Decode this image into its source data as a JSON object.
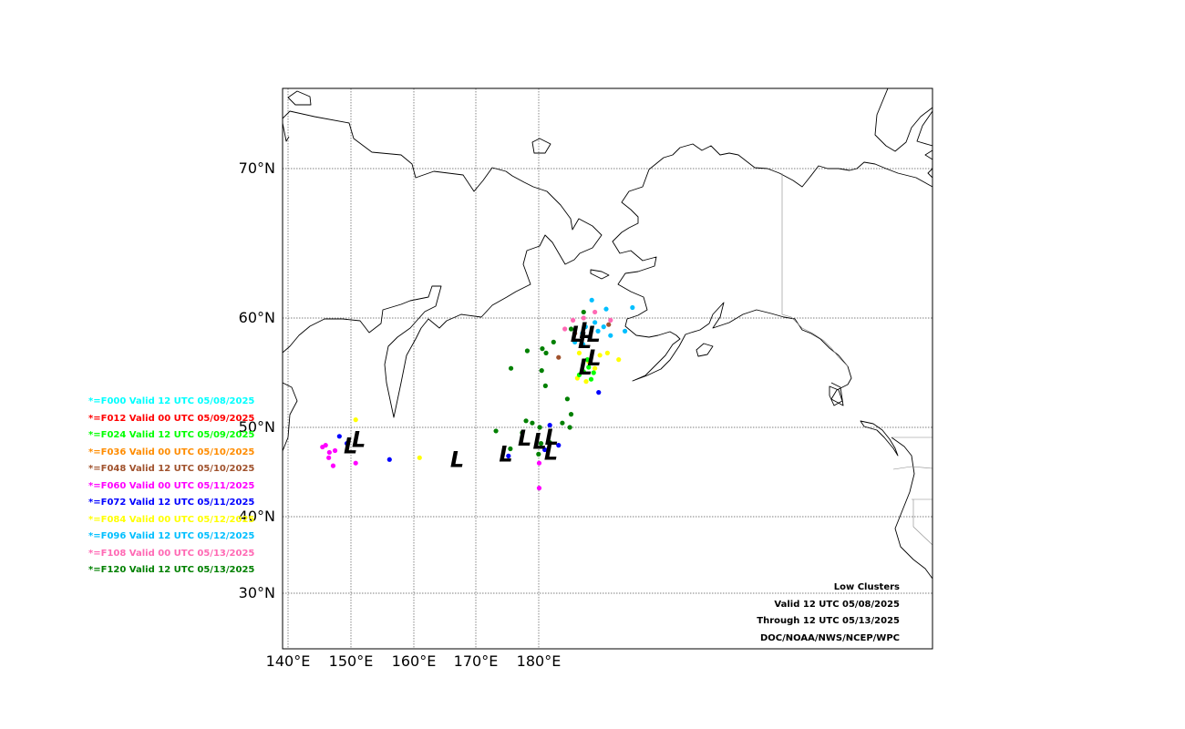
{
  "map": {
    "lat_labels": [
      "70°N",
      "60°N",
      "50°N",
      "40°N",
      "30°N"
    ],
    "lon_labels": [
      "140°E",
      "150°E",
      "160°E",
      "170°E",
      "180°E"
    ]
  },
  "legend": [
    {
      "text": "*=F000 Valid 12 UTC 05/08/2025",
      "color": "#00ffff"
    },
    {
      "text": "*=F012 Valid 00 UTC 05/09/2025",
      "color": "#ff0000"
    },
    {
      "text": "*=F024 Valid 12 UTC 05/09/2025",
      "color": "#00ff00"
    },
    {
      "text": "*=F036 Valid 00 UTC 05/10/2025",
      "color": "#ff8c00"
    },
    {
      "text": "*=F048 Valid 12 UTC 05/10/2025",
      "color": "#a0522d"
    },
    {
      "text": "*=F060 Valid 00 UTC 05/11/2025",
      "color": "#ff00ff"
    },
    {
      "text": "*=F072 Valid 12 UTC 05/11/2025",
      "color": "#0000ff"
    },
    {
      "text": "*=F084 Valid 00 UTC 05/12/2025",
      "color": "#ffff00"
    },
    {
      "text": "*=F096 Valid 12 UTC 05/12/2025",
      "color": "#00bfff"
    },
    {
      "text": "*=F108 Valid 00 UTC 05/13/2025",
      "color": "#ff69b4"
    },
    {
      "text": "*=F120 Valid 12 UTC 05/13/2025",
      "color": "#008000"
    }
  ],
  "info": {
    "line1": "Low Clusters",
    "line2": "Valid 12 UTC 05/08/2025",
    "line3": "Through 12 UTC 05/13/2025",
    "line4": "DOC/NOAA/NWS/NCEP/WPC"
  },
  "clusters": [
    {
      "label": "L",
      "lon": -173.8,
      "lat": 58.6
    },
    {
      "label": "L",
      "lon": -172.4,
      "lat": 58.9
    },
    {
      "label": "L",
      "lon": -172.6,
      "lat": 58.0
    },
    {
      "label": "L",
      "lon": -171.2,
      "lat": 58.6
    },
    {
      "label": "L",
      "lon": -172.5,
      "lat": 55.6
    },
    {
      "label": "L",
      "lon": -171.1,
      "lat": 56.4
    },
    {
      "label": "L",
      "lon": 150.0,
      "lat": 48.0
    },
    {
      "label": "L",
      "lon": 151.3,
      "lat": 48.7
    },
    {
      "label": "L",
      "lon": 167.0,
      "lat": 46.5
    },
    {
      "label": "L",
      "lon": 174.8,
      "lat": 47.1
    },
    {
      "label": "L",
      "lon": 177.8,
      "lat": 48.9
    },
    {
      "label": "L",
      "lon": -179.8,
      "lat": 48.5
    },
    {
      "label": "L",
      "lon": -177.9,
      "lat": 49.0
    },
    {
      "label": "L",
      "lon": -178.0,
      "lat": 47.3
    }
  ],
  "markers": [
    {
      "lon": -171.0,
      "lat": 59.6,
      "color": "#00bfff"
    },
    {
      "lon": -172.5,
      "lat": 59.2,
      "color": "#00bfff"
    },
    {
      "lon": -173.0,
      "lat": 58.6,
      "color": "#00bfff"
    },
    {
      "lon": -171.8,
      "lat": 58.2,
      "color": "#00bfff"
    },
    {
      "lon": -170.5,
      "lat": 58.8,
      "color": "#00bfff"
    },
    {
      "lon": -169.6,
      "lat": 59.2,
      "color": "#00bfff"
    },
    {
      "lon": -174.2,
      "lat": 57.8,
      "color": "#00bfff"
    },
    {
      "lon": -172.9,
      "lat": 57.6,
      "color": "#00bfff"
    },
    {
      "lon": -169.2,
      "lat": 60.6,
      "color": "#00bfff"
    },
    {
      "lon": -165.0,
      "lat": 60.7,
      "color": "#00bfff"
    },
    {
      "lon": -168.5,
      "lat": 58.4,
      "color": "#00bfff"
    },
    {
      "lon": -166.2,
      "lat": 58.8,
      "color": "#00bfff"
    },
    {
      "lon": -171.5,
      "lat": 61.2,
      "color": "#00bfff"
    },
    {
      "lon": -174.5,
      "lat": 59.8,
      "color": "#ff69b4"
    },
    {
      "lon": -172.8,
      "lat": 60.0,
      "color": "#ff69b4"
    },
    {
      "lon": -171.0,
      "lat": 60.4,
      "color": "#ff69b4"
    },
    {
      "lon": -175.8,
      "lat": 59.0,
      "color": "#ff69b4"
    },
    {
      "lon": -168.5,
      "lat": 59.8,
      "color": "#ff69b4"
    },
    {
      "lon": -173.5,
      "lat": 56.8,
      "color": "#ffff00"
    },
    {
      "lon": -172.0,
      "lat": 56.0,
      "color": "#ffff00"
    },
    {
      "lon": -170.2,
      "lat": 56.6,
      "color": "#ffff00"
    },
    {
      "lon": -169.0,
      "lat": 56.8,
      "color": "#ffff00"
    },
    {
      "lon": -171.0,
      "lat": 55.4,
      "color": "#ffff00"
    },
    {
      "lon": -167.2,
      "lat": 56.2,
      "color": "#ffff00"
    },
    {
      "lon": -172.4,
      "lat": 54.2,
      "color": "#ffff00"
    },
    {
      "lon": -173.8,
      "lat": 54.5,
      "color": "#ffff00"
    },
    {
      "lon": 150.8,
      "lat": 50.7,
      "color": "#ffff00"
    },
    {
      "lon": 161.0,
      "lat": 46.6,
      "color": "#ffff00"
    },
    {
      "lon": -172.8,
      "lat": 55.1,
      "color": "#00ff00"
    },
    {
      "lon": -172.0,
      "lat": 55.5,
      "color": "#00ff00"
    },
    {
      "lon": -171.2,
      "lat": 55.0,
      "color": "#00ff00"
    },
    {
      "lon": -173.5,
      "lat": 54.8,
      "color": "#00ff00"
    },
    {
      "lon": -171.6,
      "lat": 54.4,
      "color": "#00ff00"
    },
    {
      "lon": -172.2,
      "lat": 56.2,
      "color": "#00ff00"
    },
    {
      "lon": -176.8,
      "lat": 56.4,
      "color": "#a0522d"
    },
    {
      "lon": -174.2,
      "lat": 58.6,
      "color": "#a0522d"
    },
    {
      "lon": -168.8,
      "lat": 59.4,
      "color": "#a0522d"
    },
    {
      "lon": -172.8,
      "lat": 60.4,
      "color": "#008000"
    },
    {
      "lon": -174.8,
      "lat": 59.0,
      "color": "#008000"
    },
    {
      "lon": -177.6,
      "lat": 57.8,
      "color": "#008000"
    },
    {
      "lon": -179.4,
      "lat": 57.2,
      "color": "#008000"
    },
    {
      "lon": -178.8,
      "lat": 56.8,
      "color": "#008000"
    },
    {
      "lon": 178.2,
      "lat": 57.0,
      "color": "#008000"
    },
    {
      "lon": 175.6,
      "lat": 55.4,
      "color": "#008000"
    },
    {
      "lon": -179.5,
      "lat": 55.2,
      "color": "#008000"
    },
    {
      "lon": -178.9,
      "lat": 53.8,
      "color": "#008000"
    },
    {
      "lon": -175.4,
      "lat": 52.6,
      "color": "#008000"
    },
    {
      "lon": -174.8,
      "lat": 51.2,
      "color": "#008000"
    },
    {
      "lon": -176.2,
      "lat": 50.4,
      "color": "#008000"
    },
    {
      "lon": 178.0,
      "lat": 50.6,
      "color": "#008000"
    },
    {
      "lon": 179.0,
      "lat": 50.4,
      "color": "#008000"
    },
    {
      "lon": -179.8,
      "lat": 50.0,
      "color": "#008000"
    },
    {
      "lon": 173.2,
      "lat": 49.6,
      "color": "#008000"
    },
    {
      "lon": 177.4,
      "lat": 49.4,
      "color": "#008000"
    },
    {
      "lon": -178.2,
      "lat": 48.3,
      "color": "#008000"
    },
    {
      "lon": 175.5,
      "lat": 47.6,
      "color": "#008000"
    },
    {
      "lon": 180.0,
      "lat": 47.0,
      "color": "#008000"
    },
    {
      "lon": 180.4,
      "lat": 48.2,
      "color": "#008000"
    },
    {
      "lon": -175.0,
      "lat": 50.0,
      "color": "#008000"
    },
    {
      "lon": 147.5,
      "lat": 47.4,
      "color": "#ff00ff"
    },
    {
      "lon": 146.0,
      "lat": 48.0,
      "color": "#ff00ff"
    },
    {
      "lon": 146.6,
      "lat": 47.2,
      "color": "#ff00ff"
    },
    {
      "lon": 145.5,
      "lat": 47.8,
      "color": "#ff00ff"
    },
    {
      "lon": 146.5,
      "lat": 46.6,
      "color": "#ff00ff"
    },
    {
      "lon": 147.2,
      "lat": 45.7,
      "color": "#ff00ff"
    },
    {
      "lon": 150.8,
      "lat": 46.0,
      "color": "#ff00ff"
    },
    {
      "lon": 180.1,
      "lat": 46.0,
      "color": "#ff00ff"
    },
    {
      "lon": 180.1,
      "lat": 43.2,
      "color": "#ff00ff"
    },
    {
      "lon": 148.2,
      "lat": 49.0,
      "color": "#0000ff"
    },
    {
      "lon": 149.4,
      "lat": 48.2,
      "color": "#0000ff"
    },
    {
      "lon": 156.2,
      "lat": 46.4,
      "color": "#0000ff"
    },
    {
      "lon": -179.0,
      "lat": 47.5,
      "color": "#0000ff"
    },
    {
      "lon": -176.8,
      "lat": 48.0,
      "color": "#0000ff"
    },
    {
      "lon": -178.2,
      "lat": 50.2,
      "color": "#0000ff"
    },
    {
      "lon": -170.4,
      "lat": 53.2,
      "color": "#0000ff"
    },
    {
      "lon": 175.2,
      "lat": 46.8,
      "color": "#0000ff"
    }
  ]
}
